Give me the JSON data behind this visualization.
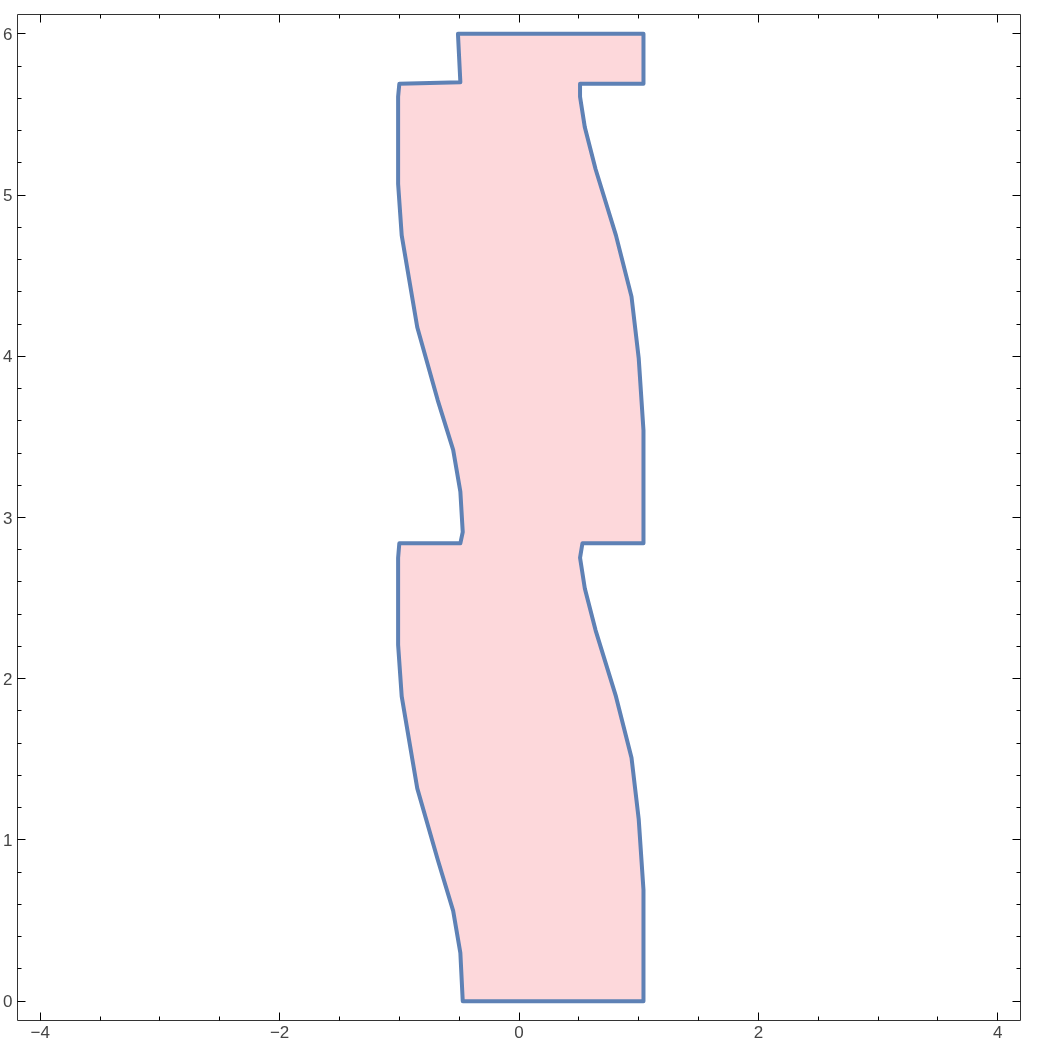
{
  "chart_data": {
    "type": "area",
    "colors": [
      "#5e81b5",
      "#fdd8db"
    ],
    "xlim": [
      -4.19,
      4.19
    ],
    "ylim": [
      -0.12,
      6.12
    ],
    "xticks": [
      -4,
      {
        "value": -3.5,
        "label": null
      },
      {
        "value": -3,
        "label": null
      },
      {
        "value": -2.5,
        "label": null
      },
      -2,
      {
        "value": -1.5,
        "label": null
      },
      {
        "value": -1,
        "label": null
      },
      {
        "value": -0.5,
        "label": null
      },
      0,
      {
        "value": 0.5,
        "label": null
      },
      {
        "value": 1,
        "label": null
      },
      {
        "value": 1.5,
        "label": null
      },
      2,
      {
        "value": 2.5,
        "label": null
      },
      {
        "value": 3,
        "label": null
      },
      {
        "value": 3.5,
        "label": null
      },
      4
    ],
    "yticks": [
      0,
      {
        "value": 0.2,
        "label": null
      },
      {
        "value": 0.4,
        "label": null
      },
      {
        "value": 0.6,
        "label": null
      },
      {
        "value": 0.8,
        "label": null
      },
      1,
      {
        "value": 1.2,
        "label": null
      },
      {
        "value": 1.4,
        "label": null
      },
      {
        "value": 1.6,
        "label": null
      },
      {
        "value": 1.8,
        "label": null
      },
      2,
      {
        "value": 2.2,
        "label": null
      },
      {
        "value": 2.4,
        "label": null
      },
      {
        "value": 2.6,
        "label": null
      },
      {
        "value": 2.8,
        "label": null
      },
      3,
      {
        "value": 3.2,
        "label": null
      },
      {
        "value": 3.4,
        "label": null
      },
      {
        "value": 3.6,
        "label": null
      },
      {
        "value": 3.8,
        "label": null
      },
      4,
      {
        "value": 4.2,
        "label": null
      },
      {
        "value": 4.4,
        "label": null
      },
      {
        "value": 4.6,
        "label": null
      },
      {
        "value": 4.8,
        "label": null
      },
      5,
      {
        "value": 5.2,
        "label": null
      },
      {
        "value": 5.4,
        "label": null
      },
      {
        "value": 5.6,
        "label": null
      },
      {
        "value": 5.8,
        "label": null
      },
      6
    ],
    "series": [
      {
        "x": [
          1.04,
          1.04,
          1.0,
          0.94,
          0.81,
          0.64,
          0.55,
          0.51,
          0.53,
          1.04,
          1.04,
          1.0,
          0.94,
          0.81,
          0.64,
          0.55,
          0.51,
          0.51,
          1.04,
          1.04,
          -0.51,
          -0.49,
          -1.0,
          -1.01,
          -1.01,
          -0.98,
          -0.85,
          -0.68,
          -0.55,
          -0.49,
          -0.47,
          -0.49,
          -1.0,
          -1.01,
          -1.01,
          -0.98,
          -0.85,
          -0.68,
          -0.55,
          -0.49,
          -0.47
        ],
        "values": [
          0,
          0.69,
          1.13,
          1.51,
          1.89,
          2.3,
          2.56,
          2.75,
          2.84,
          2.84,
          3.54,
          3.99,
          4.37,
          4.75,
          5.16,
          5.42,
          5.61,
          5.69,
          5.69,
          6.0,
          6.0,
          5.7,
          5.69,
          5.61,
          5.07,
          4.75,
          4.18,
          3.73,
          3.42,
          3.16,
          2.91,
          2.84,
          2.84,
          2.75,
          2.21,
          1.89,
          1.32,
          0.88,
          0.56,
          0.3,
          0
        ]
      }
    ]
  }
}
